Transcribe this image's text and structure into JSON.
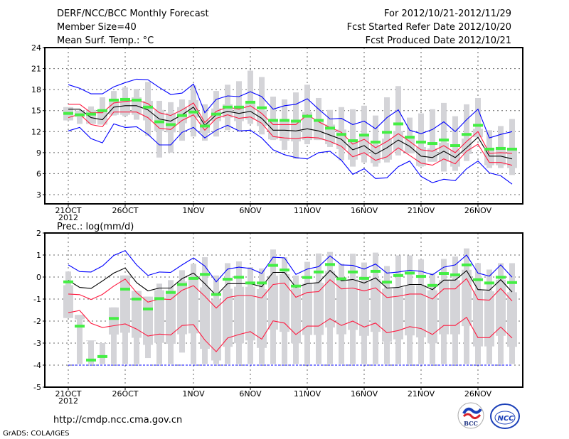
{
  "header": {
    "title": "DERF/NCC/BCC Monthly Forecast",
    "member_size": "Member Size=40",
    "variable": "Mean Surf. Temp.: °C",
    "period": "For 2012/10/21-2012/11/29",
    "refer_date": "Fcst Started Refer Date 2012/10/20",
    "produced_date": "Fcst Produced Date 2012/10/21"
  },
  "footer": {
    "url": "http://cmdp.ncc.cma.gov.cn",
    "credit": "GrADS: COLA/IGES",
    "logos": [
      "BCC",
      "NCC"
    ]
  },
  "colors": {
    "mean": "#000000",
    "spread": "#ff1a40",
    "extreme": "#0000ff",
    "obs": "#44ee44",
    "box": "#d4d4d8"
  },
  "chart_data": [
    {
      "type": "box-line",
      "title": "Mean Surf. Temp.: °C",
      "ylim": [
        1.7,
        24
      ],
      "yticks": [
        3,
        6,
        9,
        12,
        15,
        18,
        21,
        24
      ],
      "xtick_labels": [
        {
          "day": 0,
          "label": "21OCT"
        },
        {
          "day": 5,
          "label": "26OCT"
        },
        {
          "day": 11,
          "label": "1NOV"
        },
        {
          "day": 16,
          "label": "6NOV"
        },
        {
          "day": 21,
          "label": "11NOV"
        },
        {
          "day": 26,
          "label": "16NOV"
        },
        {
          "day": 31,
          "label": "21NOV"
        },
        {
          "day": 36,
          "label": "26NOV"
        }
      ],
      "year_label": "2012",
      "grid": true,
      "series": {
        "mean": [
          15.2,
          15.2,
          14.0,
          13.7,
          15.5,
          15.7,
          15.7,
          15.1,
          13.8,
          13.5,
          14.4,
          15.5,
          12.9,
          14.4,
          14.9,
          14.6,
          14.9,
          13.9,
          12.2,
          12.2,
          12.1,
          12.4,
          12.1,
          11.5,
          10.9,
          9.4,
          10.0,
          8.8,
          9.7,
          10.8,
          9.9,
          8.5,
          8.3,
          9.2,
          8.3,
          9.7,
          11.2,
          8.5,
          8.5,
          8.1
        ],
        "upper_spread": [
          15.9,
          15.9,
          14.7,
          14.7,
          16.1,
          16.3,
          16.5,
          16.0,
          14.7,
          14.3,
          15.1,
          16.1,
          13.3,
          14.9,
          15.5,
          15.2,
          15.7,
          14.6,
          13.0,
          13.0,
          13.0,
          14.4,
          13.4,
          12.6,
          11.9,
          10.2,
          10.9,
          9.7,
          10.6,
          11.7,
          10.6,
          9.4,
          9.2,
          10.0,
          9.0,
          10.6,
          12.0,
          8.9,
          9.0,
          8.9
        ],
        "lower_spread": [
          14.0,
          14.5,
          13.0,
          12.7,
          14.8,
          14.8,
          14.8,
          14.0,
          12.5,
          12.3,
          13.6,
          14.4,
          12.2,
          13.9,
          14.4,
          13.9,
          14.1,
          13.2,
          11.3,
          11.1,
          11.0,
          11.2,
          11.1,
          10.6,
          9.9,
          8.4,
          9.0,
          7.9,
          8.4,
          9.7,
          8.6,
          7.5,
          7.2,
          8.1,
          7.4,
          9.2,
          10.2,
          7.6,
          7.6,
          7.2
        ],
        "upper_extreme": [
          18.7,
          18.2,
          17.4,
          17.4,
          18.4,
          19.0,
          19.5,
          19.4,
          18.3,
          17.3,
          17.5,
          18.8,
          14.7,
          16.6,
          17.1,
          17.0,
          17.7,
          17.0,
          15.2,
          15.7,
          15.9,
          16.7,
          15.2,
          13.8,
          13.9,
          13.0,
          13.5,
          12.4,
          14.0,
          15.1,
          12.2,
          11.7,
          12.3,
          13.4,
          12.0,
          13.7,
          15.2,
          11.1,
          11.6,
          12.0
        ],
        "lower_extreme": [
          12.1,
          12.6,
          11.0,
          10.4,
          13.1,
          12.6,
          12.7,
          11.6,
          10.1,
          10.1,
          11.9,
          12.6,
          11.1,
          12.2,
          12.9,
          12.1,
          12.2,
          11.1,
          9.4,
          8.7,
          8.3,
          8.1,
          9.0,
          9.2,
          7.9,
          5.9,
          6.7,
          5.3,
          5.4,
          7.0,
          7.8,
          5.6,
          4.7,
          5.2,
          5.0,
          6.7,
          7.8,
          6.1,
          5.7,
          4.5
        ],
        "green_marker": [
          14.6,
          14.4,
          14.5,
          15.0,
          16.5,
          16.6,
          16.5,
          15.5,
          13.4,
          13.0,
          14.3,
          14.8,
          12.8,
          14.5,
          15.5,
          15.5,
          16.2,
          15.4,
          13.6,
          13.6,
          13.5,
          14.2,
          13.6,
          12.5,
          11.6,
          10.7,
          11.5,
          10.5,
          11.9,
          13.1,
          11.2,
          10.5,
          10.3,
          10.8,
          10.0,
          11.6,
          12.9,
          9.5,
          9.6,
          9.5
        ],
        "box_max": [
          15.5,
          15.0,
          15.6,
          16.9,
          17.8,
          18.3,
          18.1,
          19.1,
          16.4,
          16.2,
          16.6,
          18.6,
          15.9,
          17.8,
          18.7,
          19.2,
          20.7,
          19.8,
          17.0,
          16.6,
          17.6,
          18.7,
          16.8,
          15.1,
          15.5,
          15.2,
          15.7,
          14.3,
          16.9,
          18.5,
          14.0,
          14.6,
          15.2,
          16.1,
          14.2,
          15.9,
          16.8,
          12.2,
          12.8,
          13.8
        ],
        "box_min": [
          13.6,
          13.1,
          13.1,
          13.0,
          14.3,
          14.2,
          13.7,
          11.4,
          8.3,
          9.0,
          10.7,
          11.3,
          10.7,
          11.3,
          12.2,
          12.2,
          13.1,
          11.6,
          10.8,
          9.4,
          8.1,
          10.2,
          10.8,
          9.8,
          7.9,
          7.0,
          7.6,
          7.0,
          7.6,
          8.6,
          8.9,
          7.0,
          7.7,
          6.3,
          6.4,
          7.8,
          11.2,
          6.8,
          6.8,
          5.8
        ]
      }
    },
    {
      "type": "box-line",
      "title": "Prec.: log(mm/d)",
      "ylim": [
        -5,
        2
      ],
      "yticks": [
        -5,
        -4,
        -3,
        -2,
        -1,
        0,
        1,
        2
      ],
      "xtick_labels": [
        {
          "day": 0,
          "label": "21OCT"
        },
        {
          "day": 5,
          "label": "26OCT"
        },
        {
          "day": 11,
          "label": "1NOV"
        },
        {
          "day": 16,
          "label": "6NOV"
        },
        {
          "day": 21,
          "label": "11NOV"
        },
        {
          "day": 26,
          "label": "16NOV"
        },
        {
          "day": 31,
          "label": "21NOV"
        },
        {
          "day": 36,
          "label": "26NOV"
        }
      ],
      "year_label": "2012",
      "grid": true,
      "baseline": -4,
      "series": {
        "mean": [
          -0.15,
          -0.47,
          -0.52,
          -0.18,
          0.18,
          0.41,
          -0.25,
          -0.63,
          -0.5,
          -0.5,
          -0.07,
          0.18,
          -0.3,
          -0.84,
          -0.3,
          -0.3,
          -0.3,
          -0.44,
          0.21,
          0.21,
          -0.47,
          -0.3,
          -0.25,
          0.3,
          -0.17,
          -0.11,
          -0.27,
          -0.04,
          -0.5,
          -0.47,
          -0.34,
          -0.34,
          -0.57,
          -0.14,
          -0.14,
          0.29,
          -0.57,
          -0.6,
          -0.12,
          -0.68
        ],
        "upper_spread": [
          -0.77,
          -0.8,
          -1.02,
          -0.79,
          -0.41,
          -0.09,
          -0.71,
          -1.14,
          -1.0,
          -1.02,
          -0.6,
          -0.39,
          -0.87,
          -1.41,
          -0.93,
          -0.84,
          -0.84,
          -0.95,
          -0.34,
          -0.27,
          -0.92,
          -0.7,
          -0.66,
          -0.12,
          -0.54,
          -0.5,
          -0.63,
          -0.49,
          -0.93,
          -0.87,
          -0.77,
          -0.77,
          -1.0,
          -0.54,
          -0.54,
          -0.07,
          -1.02,
          -1.05,
          -0.52,
          -1.09
        ],
        "lower_spread": [
          -1.62,
          -1.52,
          -2.1,
          -2.29,
          -2.21,
          -2.13,
          -2.36,
          -2.68,
          -2.59,
          -2.63,
          -2.2,
          -2.16,
          -2.86,
          -3.39,
          -2.77,
          -2.61,
          -2.48,
          -2.82,
          -1.99,
          -2.09,
          -2.61,
          -2.23,
          -2.23,
          -1.89,
          -2.2,
          -2.0,
          -2.27,
          -2.09,
          -2.53,
          -2.43,
          -2.25,
          -2.34,
          -2.61,
          -2.2,
          -2.2,
          -1.83,
          -2.75,
          -2.75,
          -2.27,
          -2.77
        ],
        "upper_extreme": [
          0.55,
          0.25,
          0.23,
          0.5,
          0.98,
          1.2,
          0.55,
          0.07,
          0.23,
          0.21,
          0.55,
          0.87,
          0.5,
          -0.22,
          0.36,
          0.45,
          0.39,
          0.16,
          0.9,
          0.87,
          0.12,
          0.36,
          0.47,
          0.96,
          0.55,
          0.53,
          0.36,
          0.59,
          0.18,
          0.23,
          0.31,
          0.26,
          0.1,
          0.45,
          0.55,
          1.0,
          0.18,
          0.04,
          0.55,
          -0.01
        ],
        "green_marker": [
          -0.22,
          -2.23,
          -3.77,
          -3.61,
          -1.88,
          -0.55,
          -1.0,
          -1.45,
          -0.98,
          -0.7,
          -0.34,
          -0.06,
          0.12,
          -0.79,
          -0.1,
          -0.01,
          -0.27,
          -0.27,
          0.53,
          0.32,
          -0.41,
          -0.02,
          0.23,
          0.57,
          -0.08,
          0.23,
          -0.06,
          0.26,
          -0.23,
          0.07,
          0.18,
          0.03,
          -0.38,
          0.16,
          0.1,
          0.55,
          -0.12,
          -0.27,
          -0.01,
          -0.25
        ],
        "box_max": [
          0.25,
          -1.72,
          -2.88,
          -3.0,
          -1.38,
          0.07,
          -0.63,
          -0.89,
          -0.3,
          -0.14,
          0.31,
          0.6,
          0.9,
          0.07,
          0.63,
          0.71,
          0.45,
          0.39,
          1.25,
          0.9,
          0.07,
          0.69,
          1.07,
          1.14,
          0.6,
          1.06,
          0.66,
          1.11,
          0.5,
          0.98,
          0.98,
          0.8,
          0.18,
          0.82,
          0.93,
          1.3,
          0.63,
          0.34,
          0.63,
          0.63
        ],
        "box_min": [
          -1.86,
          -3.95,
          -3.95,
          -3.95,
          -3.95,
          -3.95,
          -3.95,
          -3.68,
          -3.95,
          -3.95,
          -3.43,
          -3.95,
          -3.95,
          -3.95,
          -3.95,
          -3.95,
          -3.95,
          -3.95,
          -3.95,
          -3.95,
          -3.95,
          -3.95,
          -3.95,
          -3.95,
          -3.95,
          -3.95,
          -3.95,
          -3.95,
          -3.95,
          -3.95,
          -3.95,
          -3.95,
          -3.95,
          -3.95,
          -3.95,
          -3.95,
          -3.95,
          -3.95,
          -3.95,
          -3.95
        ]
      }
    }
  ]
}
